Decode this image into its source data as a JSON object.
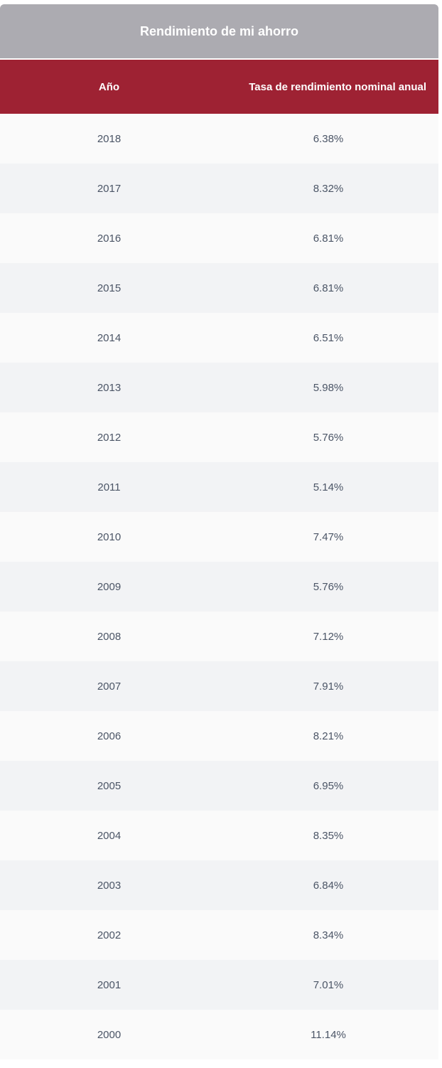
{
  "table": {
    "title": "Rendimiento de mi ahorro",
    "columns": {
      "year": "Año",
      "rate": "Tasa de rendimiento nominal anual"
    },
    "rows": [
      {
        "year": "2018",
        "rate": "6.38%"
      },
      {
        "year": "2017",
        "rate": "8.32%"
      },
      {
        "year": "2016",
        "rate": "6.81%"
      },
      {
        "year": "2015",
        "rate": "6.81%"
      },
      {
        "year": "2014",
        "rate": "6.51%"
      },
      {
        "year": "2013",
        "rate": "5.98%"
      },
      {
        "year": "2012",
        "rate": "5.76%"
      },
      {
        "year": "2011",
        "rate": "5.14%"
      },
      {
        "year": "2010",
        "rate": "7.47%"
      },
      {
        "year": "2009",
        "rate": "5.76%"
      },
      {
        "year": "2008",
        "rate": "7.12%"
      },
      {
        "year": "2007",
        "rate": "7.91%"
      },
      {
        "year": "2006",
        "rate": "8.21%"
      },
      {
        "year": "2005",
        "rate": "6.95%"
      },
      {
        "year": "2004",
        "rate": "8.35%"
      },
      {
        "year": "2003",
        "rate": "6.84%"
      },
      {
        "year": "2002",
        "rate": "8.34%"
      },
      {
        "year": "2001",
        "rate": "7.01%"
      },
      {
        "year": "2000",
        "rate": "11.14%"
      }
    ]
  },
  "colors": {
    "title_bg": "#acabb1",
    "header_bg": "#9e2233",
    "row_odd": "#fafafa",
    "row_even": "#f2f3f5",
    "text": "#4b5566"
  }
}
